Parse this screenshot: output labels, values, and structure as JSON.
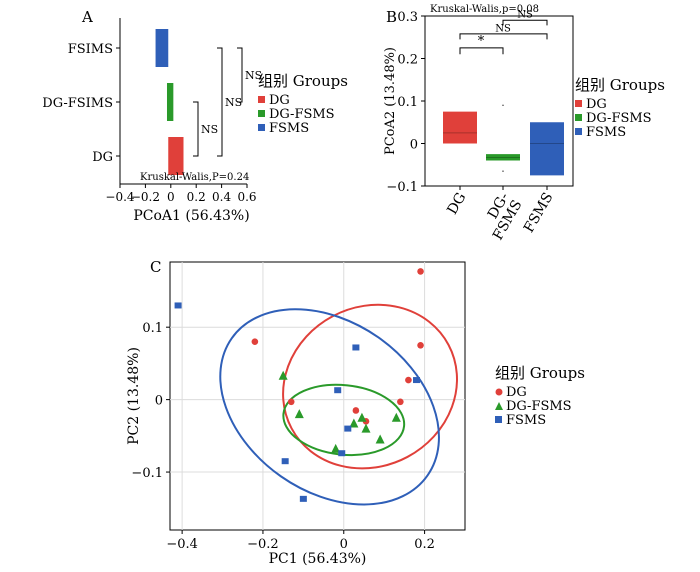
{
  "colors": {
    "DG": "#e0403a",
    "DG-FSMS": "#2a9a2a",
    "FSMS": "#2f5fb8",
    "grid": "#dcdcdc"
  },
  "chart_data": [
    {
      "panel": "A",
      "type": "box",
      "orientation": "horizontal",
      "xlabel": "PCoA1 (56.43%)",
      "xlim": [
        -0.4,
        0.6
      ],
      "xticks": [
        "−0.4",
        "−0.2",
        "0",
        "0.2",
        "0.4",
        "0.6"
      ],
      "categories": [
        "FSIMS",
        "DG-FSIMS",
        "DG"
      ],
      "boxes": [
        {
          "group": "FSMS",
          "q1": -0.12,
          "q3": -0.02
        },
        {
          "group": "DG-FSMS",
          "q1": -0.03,
          "q3": 0.02
        },
        {
          "group": "DG",
          "q1": -0.02,
          "q3": 0.1
        }
      ],
      "brackets": [
        {
          "pair": [
            "FSIMS",
            "DG"
          ],
          "label": "NS"
        },
        {
          "pair": [
            "FSIMS",
            "DG-FSIMS"
          ],
          "label": "NS"
        },
        {
          "pair": [
            "DG-FSIMS",
            "DG"
          ],
          "label": "NS"
        }
      ],
      "annotation": "Kruskal-Walis,P=0.24",
      "legend_title": "组别  Groups",
      "legend": [
        "DG",
        "DG-FSMS",
        "FSMS"
      ],
      "legend_placement": "right"
    },
    {
      "panel": "B",
      "type": "box",
      "orientation": "vertical",
      "ylabel": "PCoA2 (13.48%)",
      "ylim": [
        -0.1,
        0.3
      ],
      "yticks": [
        "0.3",
        "0.2",
        "0.1",
        "0",
        "−0.1"
      ],
      "categories": [
        "DG",
        "DG-FSMS",
        "FSMS"
      ],
      "category_labels": [
        [
          "DG"
        ],
        [
          "DG-",
          "FSMS"
        ],
        [
          "FSMS"
        ]
      ],
      "boxes": [
        {
          "group": "DG",
          "q1": 0.0,
          "q3": 0.075,
          "median": 0.025
        },
        {
          "group": "DG-FSMS",
          "q1": -0.04,
          "q3": -0.025,
          "median": -0.033
        },
        {
          "group": "FSMS",
          "q1": -0.075,
          "q3": 0.05,
          "median": 0.0
        }
      ],
      "brackets": [
        {
          "pair": [
            "DG",
            "DG-FSMS"
          ],
          "label": "*"
        },
        {
          "pair": [
            "DG",
            "FSMS"
          ],
          "label": "NS"
        },
        {
          "pair": [
            "DG-FSMS",
            "FSMS"
          ],
          "label": "NS"
        }
      ],
      "annotation": "Kruskal-Walis,p=0.08",
      "legend_title": "组别  Groups",
      "legend": [
        "DG",
        "DG-FSMS",
        "FSMS"
      ],
      "legend_placement": "right"
    },
    {
      "panel": "C",
      "type": "scatter",
      "xlabel": "PC1 (56.43%)",
      "ylabel": "PC2 (13.48%)",
      "xlim": [
        -0.43,
        0.3
      ],
      "ylim": [
        -0.18,
        0.19
      ],
      "xticks": [
        "−0.4",
        "−0.2",
        "0",
        "0.2"
      ],
      "yticks": [
        "0.1",
        "0",
        "−0.1"
      ],
      "grid": true,
      "series": [
        {
          "name": "DG",
          "marker": "circle",
          "points": [
            [
              0.19,
              0.177
            ],
            [
              -0.22,
              0.08
            ],
            [
              0.19,
              0.075
            ],
            [
              0.16,
              0.027
            ],
            [
              -0.13,
              -0.003
            ],
            [
              0.14,
              -0.003
            ],
            [
              0.03,
              -0.015
            ],
            [
              0.055,
              -0.03
            ]
          ]
        },
        {
          "name": "DG-FSMS",
          "marker": "triangle",
          "points": [
            [
              -0.15,
              0.033
            ],
            [
              -0.11,
              -0.02
            ],
            [
              0.025,
              -0.033
            ],
            [
              0.045,
              -0.025
            ],
            [
              0.13,
              -0.025
            ],
            [
              0.09,
              -0.055
            ],
            [
              -0.02,
              -0.068
            ],
            [
              0.055,
              -0.04
            ]
          ]
        },
        {
          "name": "FSMS",
          "marker": "square",
          "points": [
            [
              -0.41,
              0.13
            ],
            [
              0.03,
              0.072
            ],
            [
              0.18,
              0.027
            ],
            [
              -0.015,
              0.013
            ],
            [
              0.01,
              -0.04
            ],
            [
              -0.005,
              -0.074
            ],
            [
              -0.145,
              -0.085
            ],
            [
              -0.1,
              -0.137
            ]
          ]
        }
      ],
      "ellipses": [
        {
          "group": "DG",
          "cx": 0.065,
          "cy": 0.018,
          "rx": 0.22,
          "ry": 0.11,
          "angle_deg": 28
        },
        {
          "group": "DG-FSMS",
          "cx": 0.0,
          "cy": -0.028,
          "rx": 0.15,
          "ry": 0.048,
          "angle_deg": -6
        },
        {
          "group": "FSMS",
          "cx": -0.035,
          "cy": -0.01,
          "rx": 0.21,
          "ry": 0.165,
          "angle_deg": 55
        }
      ],
      "legend_title": "组别  Groups",
      "legend": [
        "DG",
        "DG-FSMS",
        "FSMS"
      ],
      "legend_placement": "right"
    }
  ]
}
